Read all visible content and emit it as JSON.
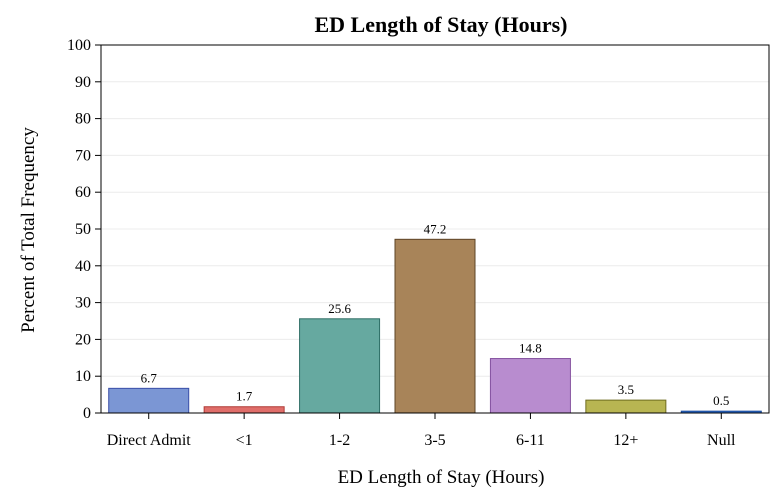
{
  "chart_data": {
    "type": "bar",
    "title": "ED Length of Stay (Hours)",
    "xlabel": "ED Length of Stay (Hours)",
    "ylabel": "Percent of Total Frequency",
    "categories": [
      "Direct Admit",
      "<1",
      "1-2",
      "3-5",
      "6-11",
      "12+",
      "Null"
    ],
    "values": [
      6.7,
      1.7,
      25.6,
      47.2,
      14.8,
      3.5,
      0.5
    ],
    "data_labels": [
      "6.7",
      "1.7",
      "25.6",
      "47.2",
      "14.8",
      "3.5",
      "0.5"
    ],
    "ylim": [
      0,
      100
    ],
    "yticks": [
      0,
      10,
      20,
      30,
      40,
      50,
      60,
      70,
      80,
      90,
      100
    ],
    "grid": true,
    "colors": [
      "#7b96d4",
      "#e06e6a",
      "#66a9a0",
      "#a88459",
      "#b88ccf",
      "#b8b552",
      "#2e6ed0"
    ],
    "edge_colors": [
      "#3a4fa8",
      "#b03a36",
      "#2f6e66",
      "#5d4426",
      "#8552a0",
      "#6f6d20",
      "#1a4a98"
    ]
  }
}
